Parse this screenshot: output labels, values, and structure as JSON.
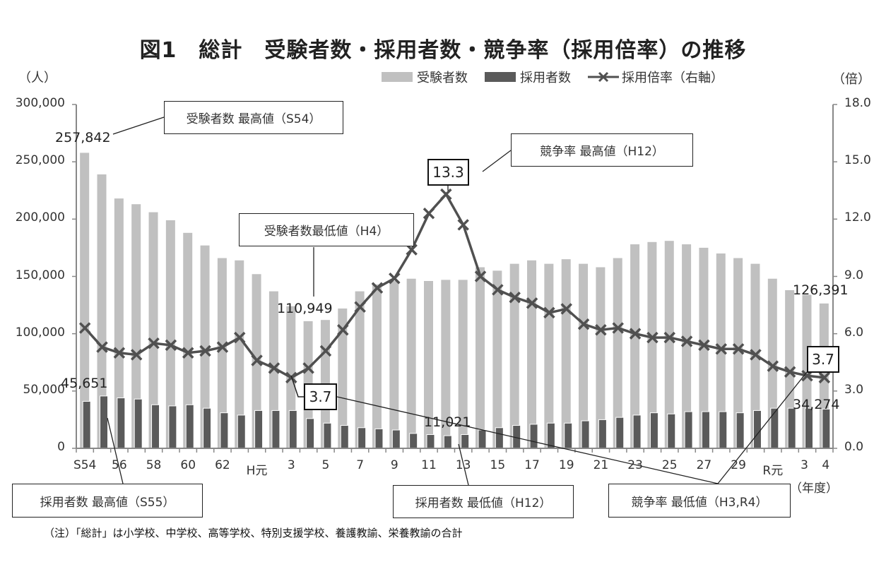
{
  "title": "図1　総計　受験者数・採用者数・競争率（採用倍率）の推移",
  "left_unit": "（人）",
  "right_unit": "（倍）",
  "x_unit": "（年度）",
  "legend": {
    "applicants": "受験者数",
    "hires": "採用者数",
    "ratio": "採用倍率（右軸）"
  },
  "colors": {
    "applicants": "#c0c0c0",
    "hires": "#5a5a5a",
    "ratio": "#505050"
  },
  "left_ticks": [
    "300,000",
    "250,000",
    "200,000",
    "150,000",
    "100,000",
    "50,000",
    "0"
  ],
  "right_ticks": [
    "18.0",
    "15.0",
    "12.0",
    "9.0",
    "6.0",
    "3.0",
    "0.0"
  ],
  "x_ticks": [
    "S54",
    "56",
    "58",
    "60",
    "62",
    "H元",
    "3",
    "5",
    "7",
    "9",
    "11",
    "13",
    "15",
    "17",
    "19",
    "21",
    "23",
    "25",
    "27",
    "29",
    "R元",
    "3",
    "4"
  ],
  "callouts": {
    "applicants_max": "受験者数 最高値（S54）",
    "applicants_min": "受験者数最低値（H4）",
    "ratio_max": "競争率 最高値（H12）",
    "hires_max": "採用者数 最高値（S55）",
    "hires_min": "採用者数 最低値（H12）",
    "ratio_min": "競争率 最低値（H3,R4）"
  },
  "value_labels": {
    "applicants_max": "257,842",
    "applicants_min": "110,949",
    "applicants_last": "126,391",
    "hires_max": "45,651",
    "hires_min": "11,021",
    "hires_last": "34,274",
    "ratio_max": "13.3",
    "ratio_min_h3": "3.7",
    "ratio_min_r4": "3.7"
  },
  "note": "（注）「総計」は小学校、中学校、高等学校、特別支援学校、養護教諭、栄養教諭の合計",
  "chart_data": {
    "type": "bar",
    "title": "図1　総計　受験者数・採用者数・競争率（採用倍率）の推移",
    "xlabel": "（年度）",
    "ylabel": "（人）",
    "y2label": "（倍）",
    "ylim": [
      0,
      300000
    ],
    "y2lim": [
      0,
      18
    ],
    "grid": false,
    "legend_position": "top-right",
    "categories": [
      "S54",
      "S55",
      "S56",
      "S57",
      "S58",
      "S59",
      "S60",
      "S61",
      "S62",
      "S63",
      "H元",
      "H2",
      "H3",
      "H4",
      "H5",
      "H6",
      "H7",
      "H8",
      "H9",
      "H10",
      "H11",
      "H12",
      "H13",
      "H14",
      "H15",
      "H16",
      "H17",
      "H18",
      "H19",
      "H20",
      "H21",
      "H22",
      "H23",
      "H24",
      "H25",
      "H26",
      "H27",
      "H28",
      "H29",
      "H30",
      "R元",
      "R2",
      "R3",
      "R4"
    ],
    "series": [
      {
        "name": "受験者数",
        "type": "bar",
        "axis": "left",
        "values": [
          257842,
          239000,
          218000,
          213000,
          206000,
          199000,
          188000,
          177000,
          166000,
          164000,
          152000,
          137000,
          124000,
          110949,
          112000,
          122000,
          137000,
          143000,
          146000,
          148000,
          146000,
          147000,
          147000,
          158000,
          155000,
          161000,
          164000,
          161000,
          165000,
          161000,
          158000,
          166000,
          178000,
          180000,
          181000,
          178000,
          175000,
          170000,
          166000,
          161000,
          148000,
          138000,
          134000,
          126391
        ]
      },
      {
        "name": "採用者数",
        "type": "bar",
        "axis": "left",
        "values": [
          41000,
          45651,
          44000,
          43000,
          38000,
          37000,
          38000,
          35000,
          31000,
          29000,
          33000,
          33000,
          33000,
          26000,
          22000,
          20000,
          18000,
          17000,
          16000,
          13000,
          12000,
          11021,
          12000,
          16000,
          18000,
          20000,
          21000,
          22000,
          22000,
          24000,
          25000,
          27000,
          29000,
          31000,
          30000,
          32000,
          32000,
          32000,
          31000,
          33000,
          35000,
          35000,
          35000,
          34274
        ]
      },
      {
        "name": "採用倍率（右軸）",
        "type": "line",
        "axis": "right",
        "values": [
          6.3,
          5.3,
          5.0,
          4.9,
          5.5,
          5.4,
          5.0,
          5.1,
          5.3,
          5.8,
          4.6,
          4.2,
          3.7,
          4.2,
          5.1,
          6.2,
          7.4,
          8.4,
          8.9,
          10.4,
          12.3,
          13.3,
          11.7,
          9.0,
          8.3,
          7.9,
          7.6,
          7.1,
          7.3,
          6.5,
          6.2,
          6.3,
          6.0,
          5.8,
          5.8,
          5.6,
          5.4,
          5.2,
          5.2,
          4.9,
          4.3,
          4.0,
          3.8,
          3.7
        ]
      }
    ],
    "annotations": [
      {
        "text": "受験者数 最高値（S54）",
        "value": "257,842"
      },
      {
        "text": "受験者数最低値（H4）",
        "value": "110,949"
      },
      {
        "text": "競争率 最高値（H12）",
        "value": "13.3"
      },
      {
        "text": "採用者数 最高値（S55）",
        "value": "45,651"
      },
      {
        "text": "採用者数 最低値（H12）",
        "value": "11,021"
      },
      {
        "text": "競争率 最低値（H3,R4）",
        "value": "3.7"
      },
      {
        "text": "R4 受験者数",
        "value": "126,391"
      },
      {
        "text": "R4 採用者数",
        "value": "34,274"
      }
    ]
  }
}
